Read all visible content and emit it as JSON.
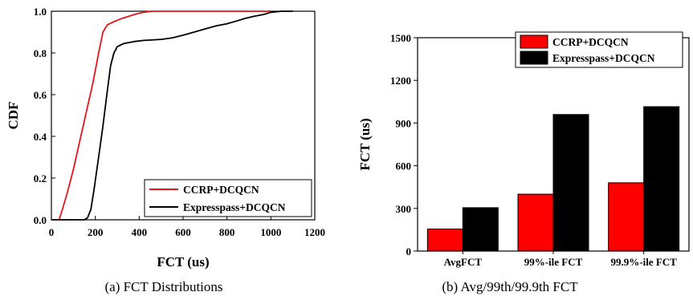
{
  "chart_data": [
    {
      "type": "line",
      "xlabel": "FCT (us)",
      "ylabel": "CDF",
      "xlim": [
        0,
        1200
      ],
      "ylim": [
        0,
        1.0
      ],
      "xticks": [
        "0",
        "200",
        "400",
        "600",
        "800",
        "1000",
        "1200"
      ],
      "yticks": [
        "0.0",
        "0.2",
        "0.4",
        "0.6",
        "0.8",
        "1.0"
      ],
      "legend_position": "bottom-right",
      "caption": "(a)  FCT Distributions",
      "series": [
        {
          "name": "CCRP+DCQCN",
          "color": "#e8141c",
          "points": [
            [
              35,
              0
            ],
            [
              50,
              0.05
            ],
            [
              70,
              0.12
            ],
            [
              100,
              0.24
            ],
            [
              130,
              0.38
            ],
            [
              160,
              0.52
            ],
            [
              190,
              0.66
            ],
            [
              215,
              0.8
            ],
            [
              235,
              0.9
            ],
            [
              255,
              0.935
            ],
            [
              285,
              0.95
            ],
            [
              320,
              0.965
            ],
            [
              350,
              0.975
            ],
            [
              380,
              0.985
            ],
            [
              420,
              0.995
            ],
            [
              460,
              1.0
            ],
            [
              1000,
              1.0
            ]
          ]
        },
        {
          "name": "Expresspass+DCQCN",
          "color": "#000000",
          "points": [
            [
              0,
              0
            ],
            [
              150,
              0
            ],
            [
              165,
              0.01
            ],
            [
              180,
              0.05
            ],
            [
              195,
              0.15
            ],
            [
              215,
              0.3
            ],
            [
              235,
              0.45
            ],
            [
              255,
              0.62
            ],
            [
              270,
              0.74
            ],
            [
              285,
              0.8
            ],
            [
              300,
              0.83
            ],
            [
              330,
              0.845
            ],
            [
              380,
              0.855
            ],
            [
              420,
              0.86
            ],
            [
              500,
              0.865
            ],
            [
              550,
              0.872
            ],
            [
              600,
              0.885
            ],
            [
              650,
              0.9
            ],
            [
              700,
              0.915
            ],
            [
              750,
              0.93
            ],
            [
              800,
              0.94
            ],
            [
              850,
              0.955
            ],
            [
              880,
              0.965
            ],
            [
              920,
              0.975
            ],
            [
              970,
              0.985
            ],
            [
              1000,
              0.995
            ],
            [
              1050,
              1.0
            ],
            [
              1100,
              1.0
            ]
          ]
        }
      ]
    },
    {
      "type": "bar",
      "ylabel": "FCT (us)",
      "ylim": [
        0,
        1500
      ],
      "yticks": [
        "0",
        "300",
        "600",
        "900",
        "1200",
        "1500"
      ],
      "categories": [
        "AvgFCT",
        "99%-ile FCT",
        "99.9%-ile FCT"
      ],
      "legend_position": "top-right",
      "caption": "(b)  Avg/99th/99.9th FCT",
      "series": [
        {
          "name": "CCRP+DCQCN",
          "color": "#ff0000",
          "values": [
            155,
            400,
            480
          ]
        },
        {
          "name": "Expresspass+DCQCN",
          "color": "#000000",
          "values": [
            305,
            960,
            1015
          ]
        }
      ]
    }
  ]
}
